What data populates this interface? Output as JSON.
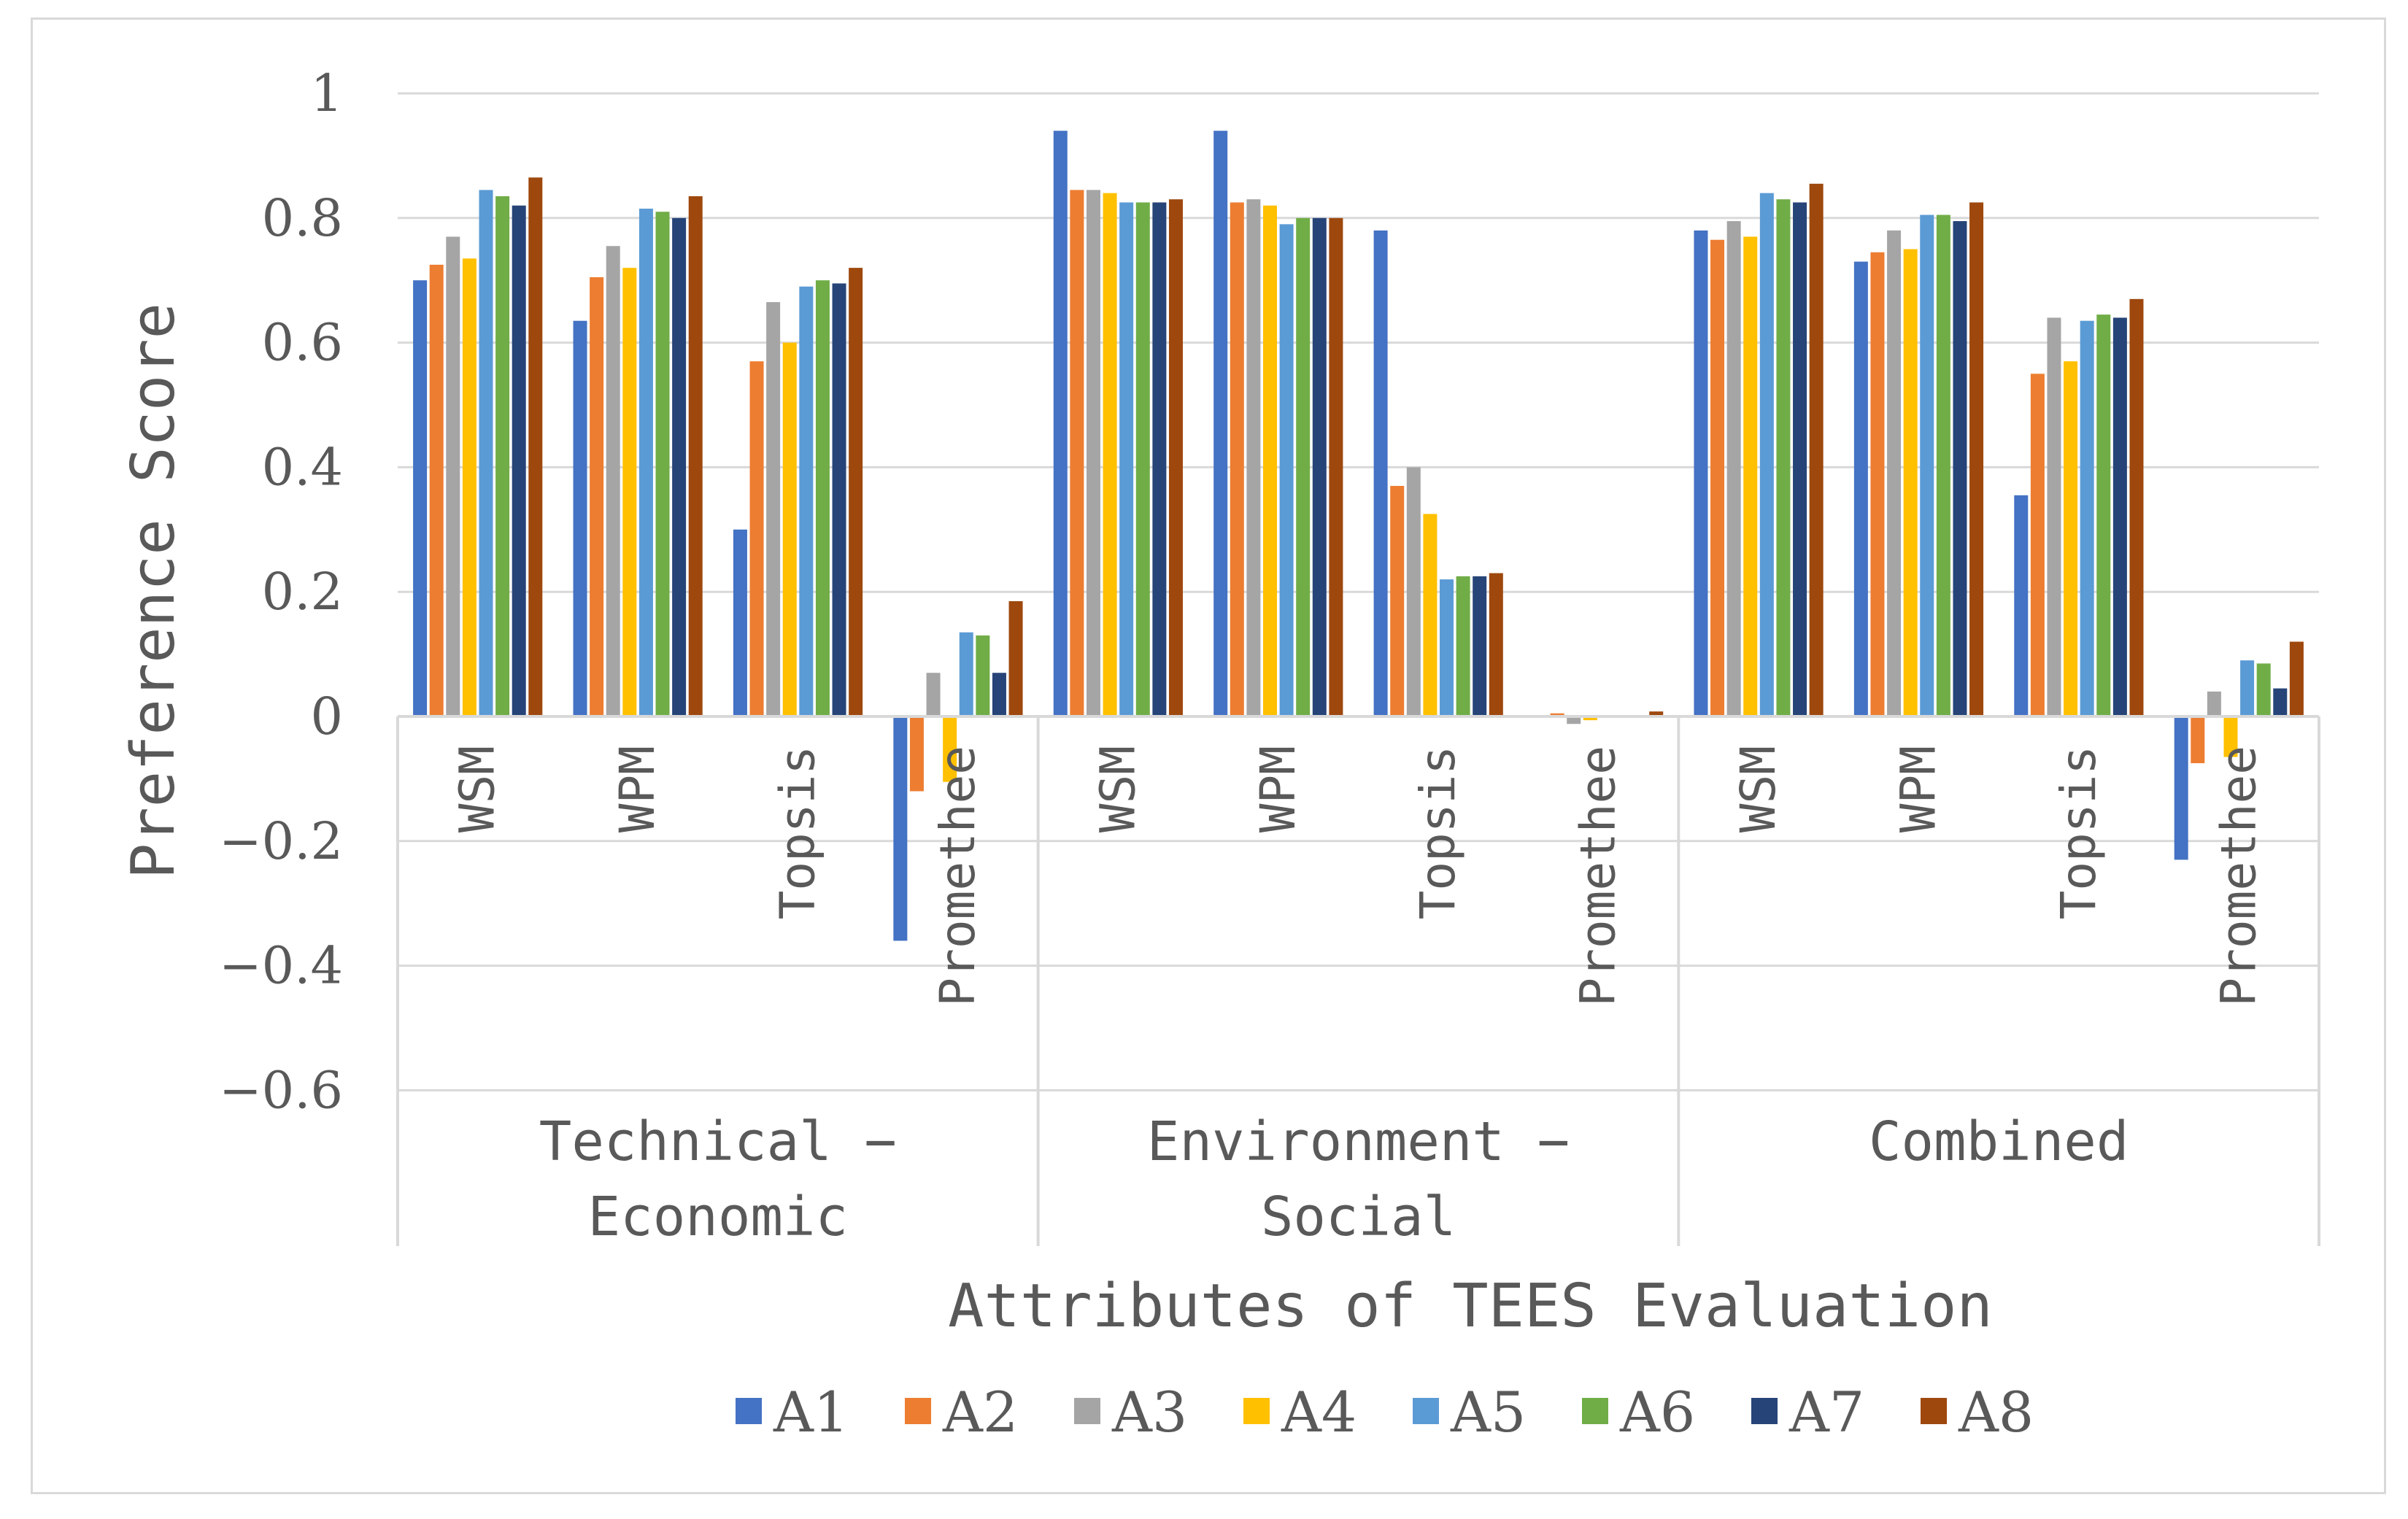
{
  "chart_data": {
    "type": "bar",
    "title": "",
    "xlabel": "Attributes of TEES Evaluation",
    "ylabel": "Preference Score",
    "ylim": [
      -0.6,
      1.0
    ],
    "yticks": [
      {
        "value": 1.0,
        "label": "1"
      },
      {
        "value": 0.8,
        "label": "0.8"
      },
      {
        "value": 0.6,
        "label": "0.6"
      },
      {
        "value": 0.4,
        "label": "0.4"
      },
      {
        "value": 0.2,
        "label": "0.2"
      },
      {
        "value": 0.0,
        "label": "0"
      },
      {
        "value": -0.2,
        "label": "−0.2"
      },
      {
        "value": -0.4,
        "label": "−0.4"
      },
      {
        "value": -0.6,
        "label": "−0.6"
      }
    ],
    "grid": true,
    "legend_position": "bottom",
    "groups": [
      {
        "label_lines": [
          "Technical −",
          "Economic"
        ],
        "categories": [
          "WSM",
          "WPM",
          "Topsis",
          "Promethee"
        ]
      },
      {
        "label_lines": [
          "Environment −",
          "Social"
        ],
        "categories": [
          "WSM",
          "WPM",
          "Topsis",
          "Promethee"
        ]
      },
      {
        "label_lines": [
          "Combined"
        ],
        "categories": [
          "WSM",
          "WPM",
          "Topsis",
          "Promethee"
        ]
      }
    ],
    "series": [
      {
        "name": "A1",
        "color": "#4472C4",
        "values": [
          0.7,
          0.635,
          0.3,
          -0.36,
          0.94,
          0.94,
          0.78,
          0.0,
          0.78,
          0.73,
          0.355,
          -0.23
        ]
      },
      {
        "name": "A2",
        "color": "#ED7D31",
        "values": [
          0.725,
          0.705,
          0.57,
          -0.12,
          0.845,
          0.825,
          0.37,
          0.005,
          0.765,
          0.745,
          0.55,
          -0.075
        ]
      },
      {
        "name": "A3",
        "color": "#A5A5A5",
        "values": [
          0.77,
          0.755,
          0.665,
          0.07,
          0.845,
          0.83,
          0.4,
          -0.012,
          0.795,
          0.78,
          0.64,
          0.04
        ]
      },
      {
        "name": "A4",
        "color": "#FFC000",
        "values": [
          0.735,
          0.72,
          0.6,
          -0.105,
          0.84,
          0.82,
          0.325,
          -0.006,
          0.77,
          0.75,
          0.57,
          -0.065
        ]
      },
      {
        "name": "A5",
        "color": "#5B9BD5",
        "values": [
          0.845,
          0.815,
          0.69,
          0.135,
          0.825,
          0.79,
          0.22,
          0.0,
          0.84,
          0.805,
          0.635,
          0.09
        ]
      },
      {
        "name": "A6",
        "color": "#70AD47",
        "values": [
          0.835,
          0.81,
          0.7,
          0.13,
          0.825,
          0.8,
          0.225,
          0.0,
          0.83,
          0.805,
          0.645,
          0.085
        ]
      },
      {
        "name": "A7",
        "color": "#264478",
        "values": [
          0.82,
          0.8,
          0.695,
          0.07,
          0.825,
          0.8,
          0.225,
          0.0,
          0.825,
          0.795,
          0.64,
          0.045
        ]
      },
      {
        "name": "A8",
        "color": "#9E480E",
        "values": [
          0.865,
          0.835,
          0.72,
          0.185,
          0.83,
          0.8,
          0.23,
          0.008,
          0.855,
          0.825,
          0.67,
          0.12
        ]
      }
    ]
  }
}
